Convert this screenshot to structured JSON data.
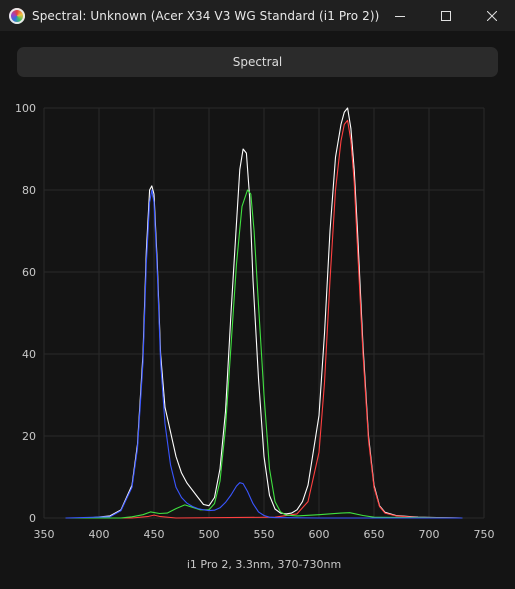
{
  "window": {
    "title": "Spectral: Unknown (Acer X34 V3 WG Standard (i1 Pro 2))",
    "icon": "spectral-app-icon",
    "controls": [
      "minimize-icon",
      "maximize-icon",
      "close-icon"
    ]
  },
  "toolbar": {
    "spectral_label": "Spectral"
  },
  "chart_data": {
    "type": "line",
    "xlabel": "i1 Pro 2, 3.3nm, 370-730nm",
    "ylabel": "",
    "xlim": [
      350,
      750
    ],
    "ylim": [
      0,
      100
    ],
    "xticks": [
      350,
      400,
      450,
      500,
      550,
      600,
      650,
      700,
      750
    ],
    "yticks": [
      0,
      20,
      40,
      60,
      80,
      100
    ],
    "grid": true,
    "series": [
      {
        "color": "#ffffff",
        "x": [
          370,
          390,
          410,
          420,
          430,
          435,
          440,
          443,
          446,
          448,
          450,
          453,
          456,
          460,
          465,
          470,
          475,
          480,
          490,
          495,
          500,
          505,
          510,
          515,
          520,
          525,
          528,
          531,
          534,
          537,
          540,
          545,
          550,
          555,
          560,
          565,
          570,
          575,
          580,
          585,
          590,
          600,
          605,
          610,
          615,
          620,
          623,
          626,
          629,
          632,
          635,
          640,
          645,
          650,
          655,
          660,
          670,
          690,
          730
        ],
        "y": [
          0,
          0,
          0.5,
          2,
          8,
          18,
          40,
          65,
          80,
          81,
          79,
          62,
          40,
          27,
          21,
          15,
          11,
          8.5,
          5,
          3.3,
          3,
          5,
          12,
          26,
          50,
          72,
          85,
          90,
          89,
          78,
          58,
          34,
          15,
          5.5,
          2.2,
          1.2,
          1,
          1.2,
          2,
          4,
          8,
          25,
          45,
          70,
          88,
          96,
          99,
          100,
          95,
          85,
          70,
          42,
          20,
          8,
          3,
          1.4,
          0.6,
          0.2,
          0
        ]
      },
      {
        "color": "#ff4040",
        "x": [
          370,
          430,
          445,
          450,
          455,
          470,
          560,
          580,
          590,
          600,
          605,
          610,
          615,
          620,
          623,
          626,
          629,
          632,
          635,
          640,
          645,
          650,
          655,
          660,
          670,
          690,
          730
        ],
        "y": [
          0,
          0,
          0.4,
          0.7,
          0.4,
          0,
          0.2,
          1,
          4,
          16,
          33,
          58,
          80,
          92,
          96,
          97,
          92,
          82,
          66,
          40,
          19,
          7.5,
          2.8,
          1.2,
          0.5,
          0.1,
          0
        ]
      },
      {
        "color": "#40e040",
        "x": [
          370,
          420,
          430,
          440,
          447,
          455,
          462,
          470,
          478,
          485,
          492,
          500,
          505,
          510,
          515,
          520,
          525,
          530,
          535,
          538,
          541,
          545,
          550,
          555,
          560,
          565,
          570,
          580,
          600,
          620,
          628,
          640,
          650,
          730
        ],
        "y": [
          0,
          0,
          0.3,
          0.8,
          1.5,
          1.1,
          1.2,
          2.3,
          3.2,
          2.6,
          2,
          2,
          3.5,
          9,
          22,
          42,
          62,
          76,
          80,
          79,
          70,
          52,
          30,
          12,
          4,
          1.5,
          0.7,
          0.5,
          0.8,
          1.2,
          1.3,
          0.6,
          0.2,
          0
        ]
      },
      {
        "color": "#3a56ff",
        "x": [
          370,
          410,
          420,
          430,
          435,
          440,
          443,
          446,
          448,
          450,
          453,
          456,
          460,
          465,
          470,
          475,
          480,
          485,
          490,
          495,
          500,
          505,
          510,
          515,
          520,
          525,
          528,
          531,
          535,
          540,
          545,
          550,
          555,
          560,
          600,
          730
        ],
        "y": [
          0,
          0.3,
          1.8,
          7.5,
          17,
          38,
          62,
          77,
          80,
          77,
          60,
          38,
          23,
          13,
          7.5,
          5,
          3.6,
          2.8,
          2.3,
          2,
          1.8,
          1.9,
          2.5,
          3.8,
          5.6,
          7.8,
          8.6,
          8.4,
          6.5,
          3.5,
          1.5,
          0.6,
          0.2,
          0.1,
          0,
          0
        ]
      }
    ]
  }
}
